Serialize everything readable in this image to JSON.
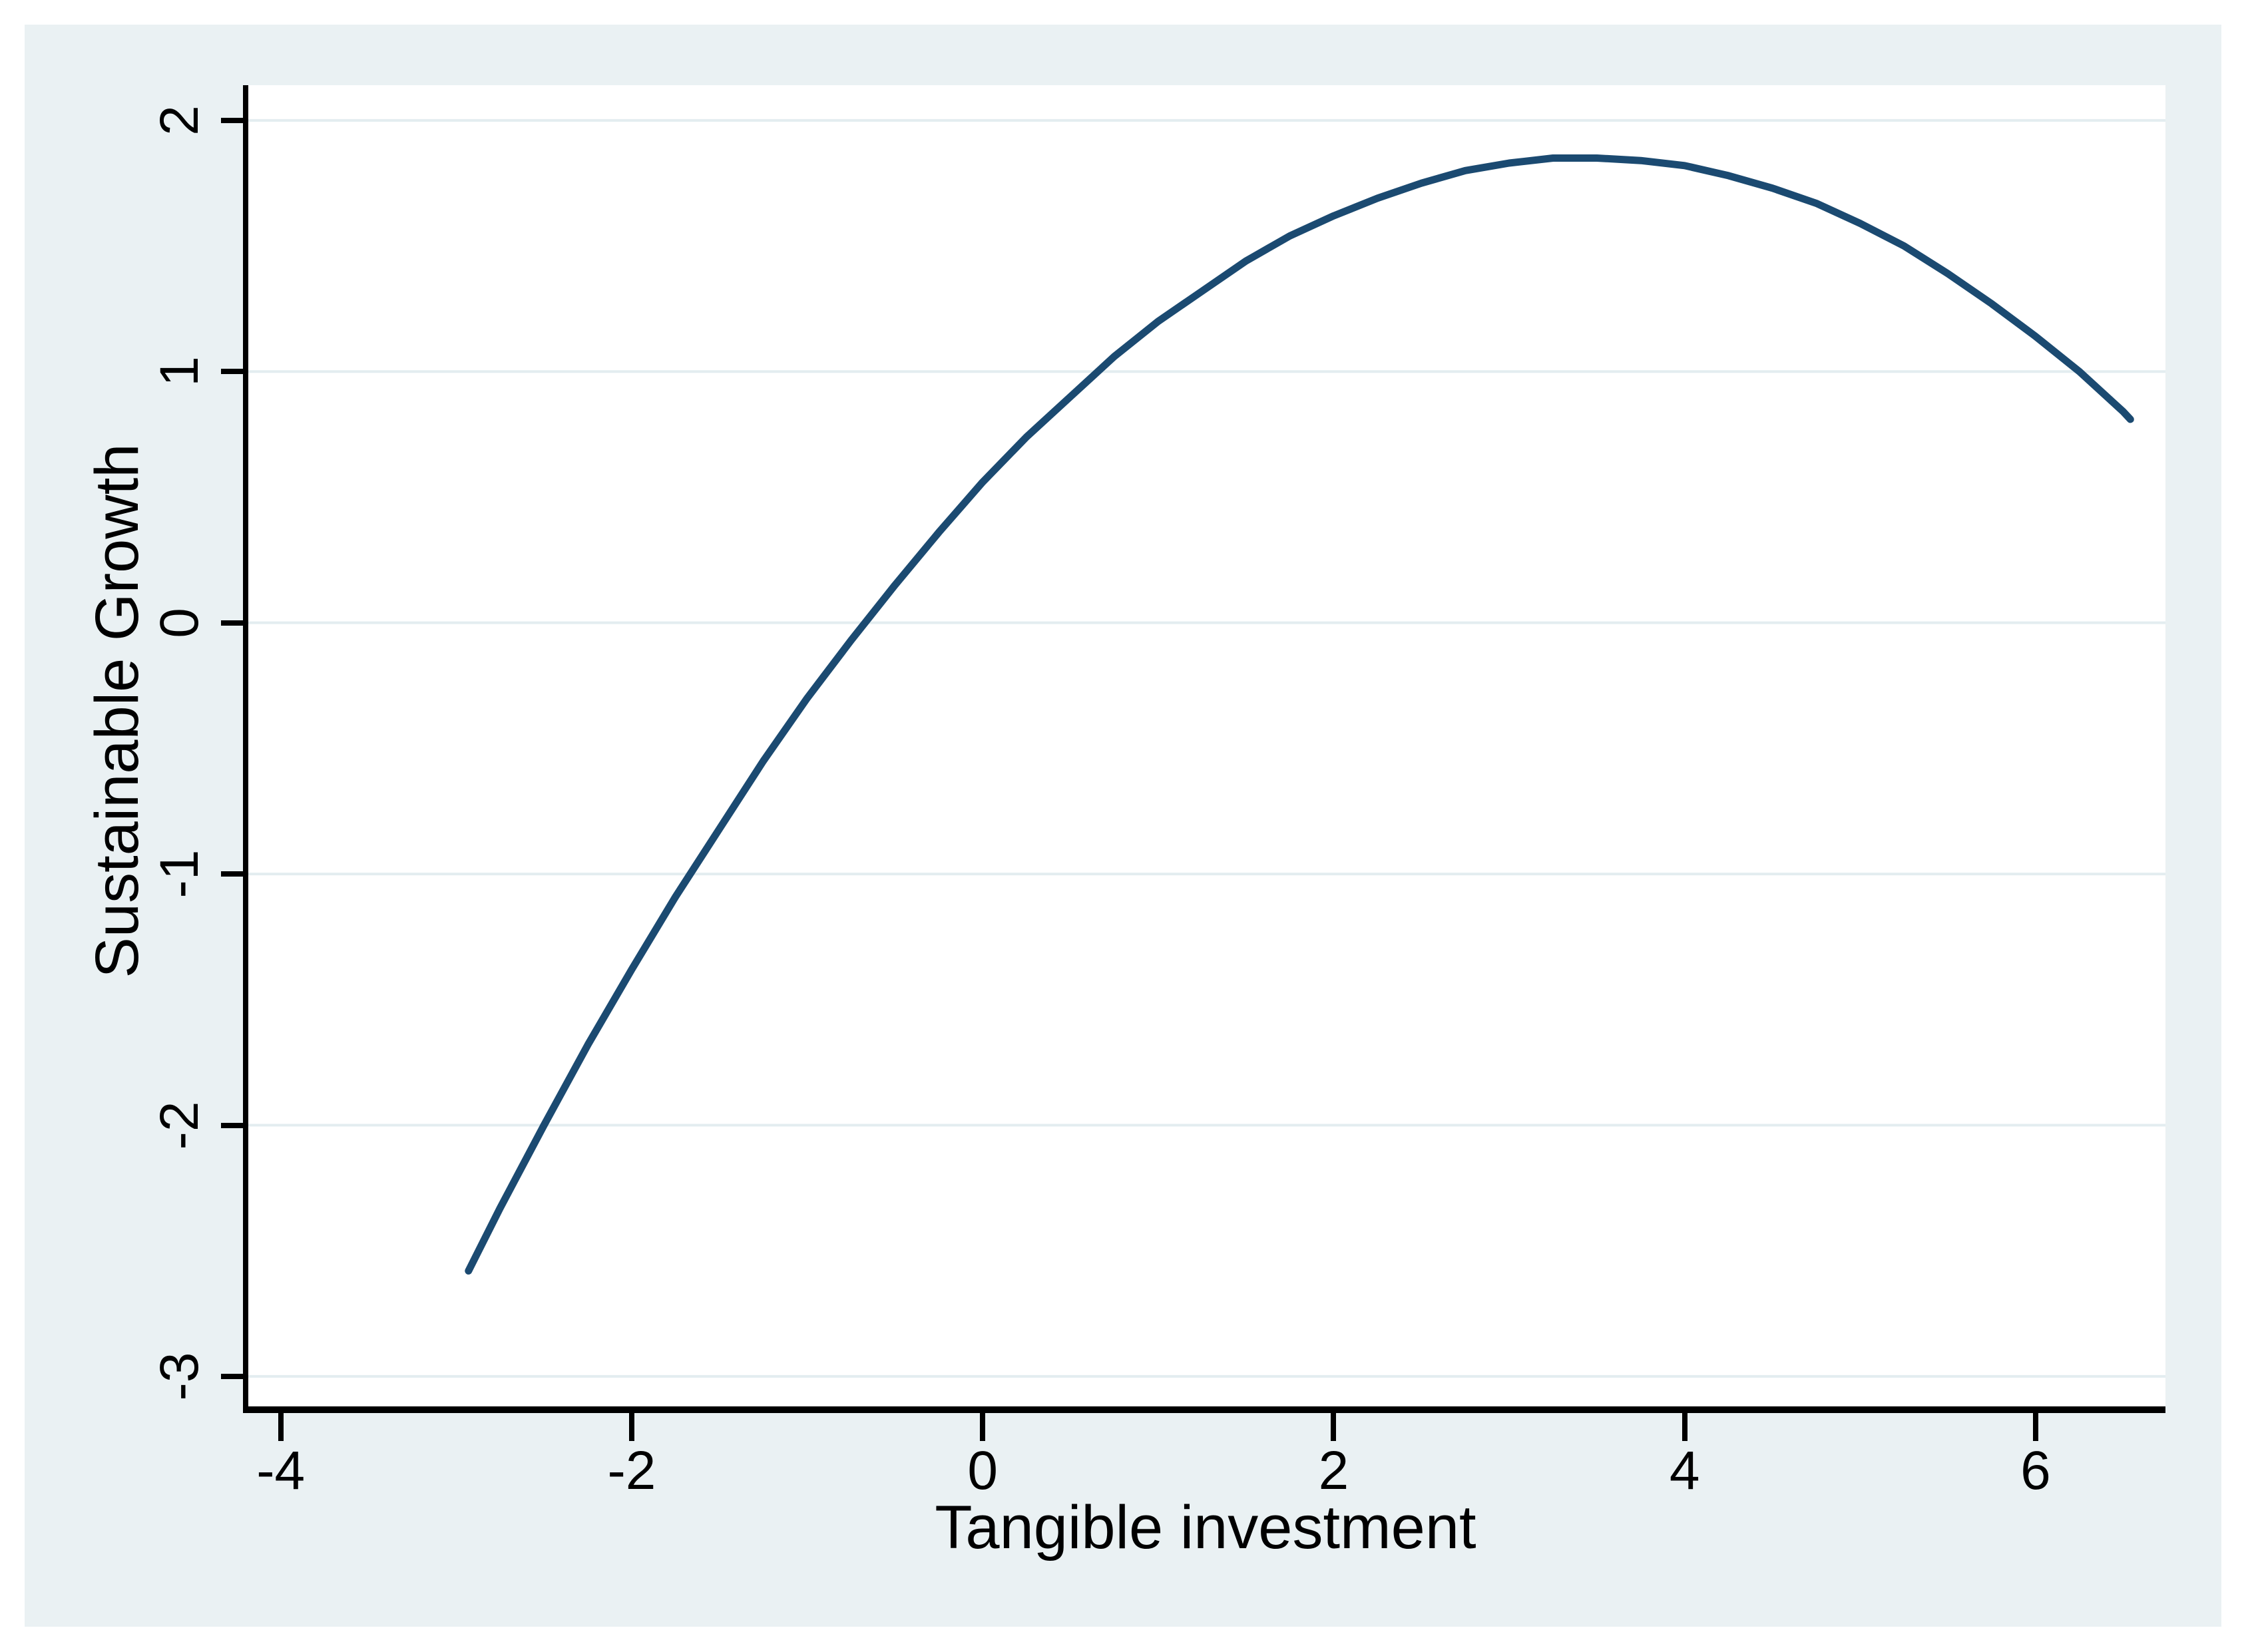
{
  "figure": {
    "background_color": "#eaf1f3",
    "plot_background_color": "#ffffff",
    "gridline_color": "#e3edf0",
    "axis_color": "#000000",
    "text_color": "#000000"
  },
  "chart_data": {
    "type": "line",
    "title": "",
    "xlabel": "Tangible investment",
    "ylabel": "Sustainable Growth",
    "xlim": [
      -4.2,
      6.74
    ],
    "ylim": [
      -3.13,
      2.14
    ],
    "x_ticks": [
      -4,
      -2,
      0,
      2,
      4,
      6
    ],
    "x_tick_labels": [
      "-4",
      "-2",
      "0",
      "2",
      "4",
      "6"
    ],
    "y_ticks": [
      2,
      1,
      0,
      -1,
      -2,
      -3
    ],
    "y_tick_labels": [
      "2",
      "1",
      "0",
      "-1",
      "-2",
      "-3"
    ],
    "grid": "horizontal-only",
    "legend_position": "none",
    "series": [
      {
        "name": "fitted-curve",
        "color": "#1b4a71",
        "points": [
          [
            -2.93,
            -2.58
          ],
          [
            -2.75,
            -2.33
          ],
          [
            -2.5,
            -2.0
          ],
          [
            -2.25,
            -1.68
          ],
          [
            -2.0,
            -1.38
          ],
          [
            -1.75,
            -1.09
          ],
          [
            -1.5,
            -0.82
          ],
          [
            -1.25,
            -0.55
          ],
          [
            -1.0,
            -0.3
          ],
          [
            -0.75,
            -0.07
          ],
          [
            -0.5,
            0.15
          ],
          [
            -0.25,
            0.36
          ],
          [
            0.0,
            0.56
          ],
          [
            0.25,
            0.74
          ],
          [
            0.5,
            0.9
          ],
          [
            0.75,
            1.06
          ],
          [
            1.0,
            1.2
          ],
          [
            1.25,
            1.32
          ],
          [
            1.5,
            1.44
          ],
          [
            1.75,
            1.54
          ],
          [
            2.0,
            1.62
          ],
          [
            2.25,
            1.69
          ],
          [
            2.5,
            1.75
          ],
          [
            2.75,
            1.8
          ],
          [
            3.0,
            1.83
          ],
          [
            3.25,
            1.85
          ],
          [
            3.5,
            1.85
          ],
          [
            3.75,
            1.84
          ],
          [
            4.0,
            1.82
          ],
          [
            4.25,
            1.78
          ],
          [
            4.5,
            1.73
          ],
          [
            4.75,
            1.67
          ],
          [
            5.0,
            1.59
          ],
          [
            5.25,
            1.5
          ],
          [
            5.5,
            1.39
          ],
          [
            5.75,
            1.27
          ],
          [
            6.0,
            1.14
          ],
          [
            6.25,
            1.0
          ],
          [
            6.5,
            0.84
          ],
          [
            6.54,
            0.81
          ]
        ]
      }
    ]
  }
}
